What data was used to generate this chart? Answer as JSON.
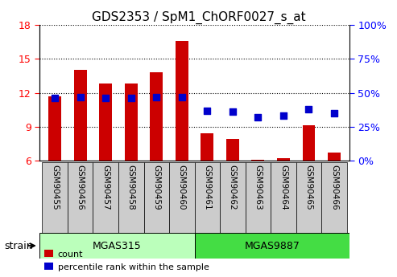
{
  "title": "GDS2353 / SpM1_ChORF0027_s_at",
  "samples": [
    "GSM90455",
    "GSM90456",
    "GSM90457",
    "GSM90458",
    "GSM90459",
    "GSM90460",
    "GSM90461",
    "GSM90462",
    "GSM90463",
    "GSM90464",
    "GSM90465",
    "GSM90466"
  ],
  "bar_heights": [
    11.7,
    14.0,
    12.8,
    12.8,
    13.8,
    16.6,
    8.4,
    7.9,
    6.1,
    6.2,
    9.1,
    6.7
  ],
  "bar_base": 6.0,
  "blue_values": [
    46,
    47,
    46,
    46,
    47,
    47,
    37,
    36,
    32,
    33,
    38,
    35
  ],
  "bar_color": "#cc0000",
  "blue_color": "#0000cc",
  "ylim_left": [
    6,
    18
  ],
  "ylim_right": [
    0,
    100
  ],
  "yticks_left": [
    6,
    9,
    12,
    15,
    18
  ],
  "yticks_right": [
    0,
    25,
    50,
    75,
    100
  ],
  "ytick_labels_right": [
    "0%",
    "25%",
    "50%",
    "75%",
    "100%"
  ],
  "group1_label": "MGAS315",
  "group2_label": "MGAS9887",
  "group1_count": 6,
  "group2_count": 6,
  "group1_color": "#bbffbb",
  "group2_color": "#44dd44",
  "tick_bg_color": "#cccccc",
  "strain_label": "strain",
  "legend_count": "count",
  "legend_pct": "percentile rank within the sample",
  "bar_width": 0.5,
  "blue_marker_size": 40
}
